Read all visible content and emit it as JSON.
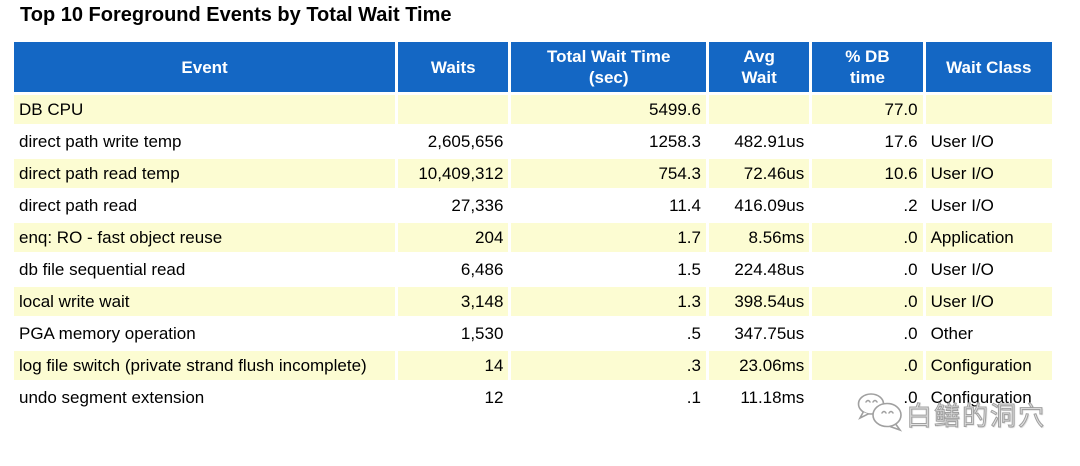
{
  "title": "Top 10 Foreground Events by Total Wait Time",
  "colors": {
    "header_bg": "#1467c4",
    "header_text": "#ffffff",
    "row_alt_bg": "#fcfcd2",
    "row_bg": "#ffffff",
    "text": "#000000"
  },
  "table": {
    "columns": [
      {
        "id": "event",
        "label": "Event",
        "align": "left"
      },
      {
        "id": "waits",
        "label": "Waits",
        "align": "right"
      },
      {
        "id": "total_wait_time_sec",
        "label": "Total Wait Time\n(sec)",
        "align": "right"
      },
      {
        "id": "avg_wait",
        "label": "Avg\nWait",
        "align": "right"
      },
      {
        "id": "pct_db_time",
        "label": "% DB\ntime",
        "align": "right"
      },
      {
        "id": "wait_class",
        "label": "Wait Class",
        "align": "left"
      }
    ],
    "rows": [
      {
        "event": "DB CPU",
        "waits": "",
        "total_wait_time_sec": "5499.6",
        "avg_wait": "",
        "pct_db_time": "77.0",
        "wait_class": ""
      },
      {
        "event": "direct path write temp",
        "waits": "2,605,656",
        "total_wait_time_sec": "1258.3",
        "avg_wait": "482.91us",
        "pct_db_time": "17.6",
        "wait_class": "User I/O"
      },
      {
        "event": "direct path read temp",
        "waits": "10,409,312",
        "total_wait_time_sec": "754.3",
        "avg_wait": "72.46us",
        "pct_db_time": "10.6",
        "wait_class": "User I/O"
      },
      {
        "event": "direct path read",
        "waits": "27,336",
        "total_wait_time_sec": "11.4",
        "avg_wait": "416.09us",
        "pct_db_time": ".2",
        "wait_class": "User I/O"
      },
      {
        "event": "enq: RO - fast object reuse",
        "waits": "204",
        "total_wait_time_sec": "1.7",
        "avg_wait": "8.56ms",
        "pct_db_time": ".0",
        "wait_class": "Application"
      },
      {
        "event": "db file sequential read",
        "waits": "6,486",
        "total_wait_time_sec": "1.5",
        "avg_wait": "224.48us",
        "pct_db_time": ".0",
        "wait_class": "User I/O"
      },
      {
        "event": "local write wait",
        "waits": "3,148",
        "total_wait_time_sec": "1.3",
        "avg_wait": "398.54us",
        "pct_db_time": ".0",
        "wait_class": "User I/O"
      },
      {
        "event": "PGA memory operation",
        "waits": "1,530",
        "total_wait_time_sec": ".5",
        "avg_wait": "347.75us",
        "pct_db_time": ".0",
        "wait_class": "Other"
      },
      {
        "event": "log file switch (private strand flush incomplete)",
        "waits": "14",
        "total_wait_time_sec": ".3",
        "avg_wait": "23.06ms",
        "pct_db_time": ".0",
        "wait_class": "Configuration"
      },
      {
        "event": "undo segment extension",
        "waits": "12",
        "total_wait_time_sec": ".1",
        "avg_wait": "11.18ms",
        "pct_db_time": ".0",
        "wait_class": "Configuration"
      }
    ]
  },
  "watermark": {
    "icon": "wechat-bubbles-icon",
    "text": "白鳝的洞穴"
  }
}
